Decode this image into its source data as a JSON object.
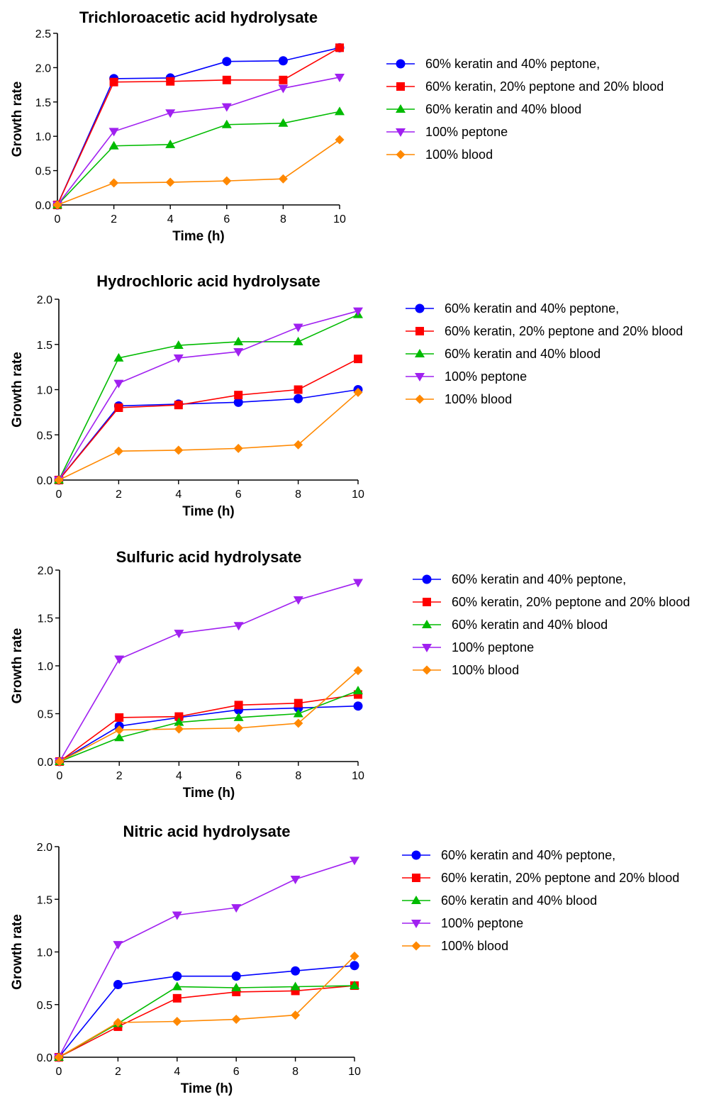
{
  "chart_data": [
    {
      "type": "line",
      "title": "Trichloroacetic acid hydrolysate",
      "xlabel": "Time (h)",
      "ylabel": "Growth rate",
      "xlim": [
        0,
        10
      ],
      "ylim": [
        0,
        2.5
      ],
      "xticks": [
        "0",
        "2",
        "4",
        "6",
        "8",
        "10"
      ],
      "yticks": [
        "0.0",
        "0.5",
        "1.0",
        "1.5",
        "2.0",
        "2.5"
      ],
      "x": [
        0,
        2,
        4,
        6,
        8,
        10
      ],
      "series": [
        {
          "name": "60% keratin and 40% peptone,",
          "color": "#0000ff",
          "marker": "circle",
          "values": [
            0,
            1.84,
            1.85,
            2.09,
            2.1,
            2.29
          ]
        },
        {
          "name": "60% keratin, 20% peptone and 20% blood",
          "color": "#ff0000",
          "marker": "square",
          "values": [
            0,
            1.79,
            1.8,
            1.82,
            1.82,
            2.29
          ]
        },
        {
          "name": "60% keratin and 40% blood",
          "color": "#00bb00",
          "marker": "triangle-up",
          "values": [
            0,
            0.86,
            0.88,
            1.17,
            1.19,
            1.36
          ]
        },
        {
          "name": "100% peptone",
          "color": "#a020f0",
          "marker": "triangle-down",
          "values": [
            0,
            1.07,
            1.34,
            1.43,
            1.7,
            1.86
          ]
        },
        {
          "name": "100% blood",
          "color": "#ff8800",
          "marker": "diamond",
          "values": [
            0,
            0.32,
            0.33,
            0.35,
            0.38,
            0.95
          ]
        }
      ]
    },
    {
      "type": "line",
      "title": "Hydrochloric acid hydrolysate",
      "xlabel": "Time (h)",
      "ylabel": "Growth rate",
      "xlim": [
        0,
        10
      ],
      "ylim": [
        0,
        2.0
      ],
      "xticks": [
        "0",
        "2",
        "4",
        "6",
        "8",
        "10"
      ],
      "yticks": [
        "0.0",
        "0.5",
        "1.0",
        "1.5",
        "2.0"
      ],
      "x": [
        0,
        2,
        4,
        6,
        8,
        10
      ],
      "series": [
        {
          "name": "60% keratin and 40% peptone,",
          "color": "#0000ff",
          "marker": "circle",
          "values": [
            0,
            0.82,
            0.84,
            0.86,
            0.9,
            1.0
          ]
        },
        {
          "name": "60% keratin, 20% peptone and 20% blood",
          "color": "#ff0000",
          "marker": "square",
          "values": [
            0,
            0.8,
            0.83,
            0.94,
            1.0,
            1.34
          ]
        },
        {
          "name": "60% keratin and 40% blood",
          "color": "#00bb00",
          "marker": "triangle-up",
          "values": [
            0,
            1.35,
            1.49,
            1.53,
            1.53,
            1.83
          ]
        },
        {
          "name": "100% peptone",
          "color": "#a020f0",
          "marker": "triangle-down",
          "values": [
            0,
            1.07,
            1.35,
            1.42,
            1.69,
            1.87
          ]
        },
        {
          "name": "100% blood",
          "color": "#ff8800",
          "marker": "diamond",
          "values": [
            0,
            0.32,
            0.33,
            0.35,
            0.39,
            0.97
          ]
        }
      ]
    },
    {
      "type": "line",
      "title": "Sulfuric acid hydrolysate",
      "xlabel": "Time (h)",
      "ylabel": "Growth rate",
      "xlim": [
        0,
        10
      ],
      "ylim": [
        0,
        2.0
      ],
      "xticks": [
        "0",
        "2",
        "4",
        "6",
        "8",
        "10"
      ],
      "yticks": [
        "0.0",
        "0.5",
        "1.0",
        "1.5",
        "2.0"
      ],
      "x": [
        0,
        2,
        4,
        6,
        8,
        10
      ],
      "series": [
        {
          "name": "60% keratin and 40% peptone,",
          "color": "#0000ff",
          "marker": "circle",
          "values": [
            0,
            0.37,
            0.46,
            0.54,
            0.56,
            0.58
          ]
        },
        {
          "name": "60% keratin, 20% peptone and 20% blood",
          "color": "#ff0000",
          "marker": "square",
          "values": [
            0,
            0.46,
            0.47,
            0.59,
            0.61,
            0.7
          ]
        },
        {
          "name": "60% keratin and 40% blood",
          "color": "#00bb00",
          "marker": "triangle-up",
          "values": [
            0,
            0.25,
            0.41,
            0.46,
            0.5,
            0.74
          ]
        },
        {
          "name": "100% peptone",
          "color": "#a020f0",
          "marker": "triangle-down",
          "values": [
            0,
            1.07,
            1.34,
            1.42,
            1.69,
            1.87
          ]
        },
        {
          "name": "100% blood",
          "color": "#ff8800",
          "marker": "diamond",
          "values": [
            0,
            0.33,
            0.34,
            0.35,
            0.4,
            0.95
          ]
        }
      ]
    },
    {
      "type": "line",
      "title": "Nitric acid hydrolysate",
      "xlabel": "Time (h)",
      "ylabel": "Growth rate",
      "xlim": [
        0,
        10
      ],
      "ylim": [
        0,
        2.0
      ],
      "xticks": [
        "0",
        "2",
        "4",
        "6",
        "8",
        "10"
      ],
      "yticks": [
        "0.0",
        "0.5",
        "1.0",
        "1.5",
        "2.0"
      ],
      "x": [
        0,
        2,
        4,
        6,
        8,
        10
      ],
      "series": [
        {
          "name": "60% keratin and 40% peptone,",
          "color": "#0000ff",
          "marker": "circle",
          "values": [
            0,
            0.69,
            0.77,
            0.77,
            0.82,
            0.87
          ]
        },
        {
          "name": "60% keratin, 20% peptone and 20% blood",
          "color": "#ff0000",
          "marker": "square",
          "values": [
            0,
            0.29,
            0.56,
            0.62,
            0.63,
            0.68
          ]
        },
        {
          "name": "60% keratin and 40% blood",
          "color": "#00bb00",
          "marker": "triangle-up",
          "values": [
            0,
            0.32,
            0.67,
            0.66,
            0.67,
            0.68
          ]
        },
        {
          "name": "100% peptone",
          "color": "#a020f0",
          "marker": "triangle-down",
          "values": [
            0,
            1.07,
            1.35,
            1.42,
            1.69,
            1.87
          ]
        },
        {
          "name": "100% blood",
          "color": "#ff8800",
          "marker": "diamond",
          "values": [
            0,
            0.33,
            0.34,
            0.36,
            0.4,
            0.96
          ]
        }
      ]
    }
  ]
}
